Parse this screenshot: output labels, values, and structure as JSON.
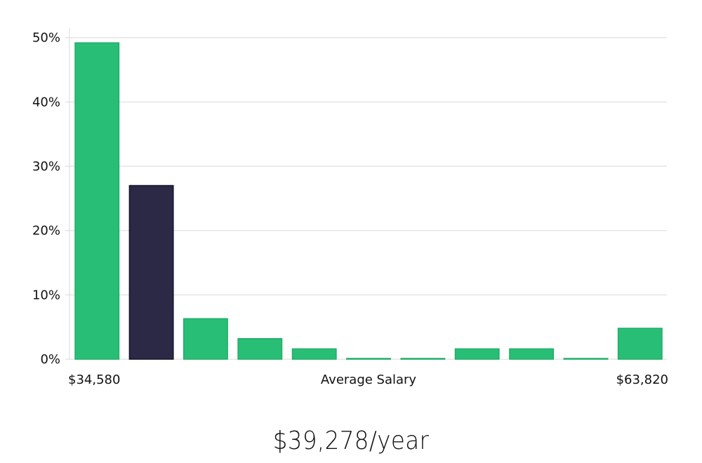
{
  "chart_data": {
    "type": "bar",
    "title": "",
    "xlabel": "Average Salary",
    "ylabel": "",
    "x_min_label": "$34,580",
    "x_max_label": "$63,820",
    "y_ticks": [
      "0%",
      "10%",
      "20%",
      "30%",
      "40%",
      "50%"
    ],
    "ylim": [
      0,
      51.5
    ],
    "grid": true,
    "values": [
      49.2,
      27.0,
      6.3,
      3.2,
      1.6,
      0.1,
      0.1,
      1.6,
      1.6,
      0.1,
      4.8
    ],
    "highlight_index": 1,
    "colors": {
      "bar": "#29be76",
      "bar_edge": "#1fae67",
      "highlight": "#2b2946",
      "highlight_edge": "#14132a"
    }
  },
  "headline": "$39,278/year"
}
